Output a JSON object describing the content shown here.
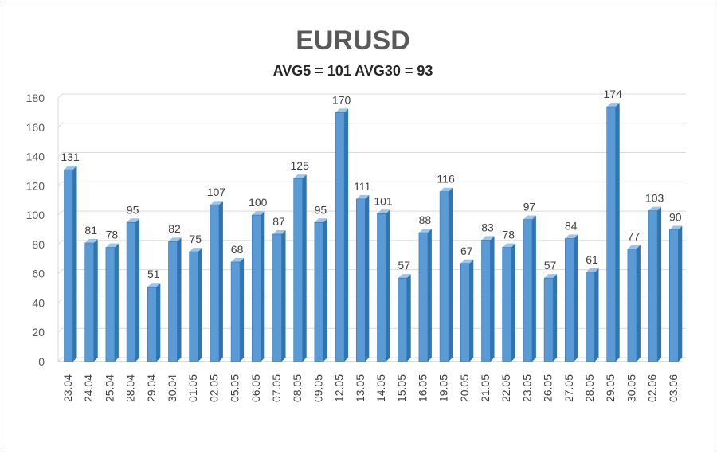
{
  "chart_data": {
    "type": "bar",
    "title": "EURUSD",
    "subtitle": "AVG5 = 101 AVG30 = 93",
    "xlabel": "",
    "ylabel": "",
    "ylim": [
      0,
      180
    ],
    "yticks": [
      0,
      20,
      40,
      60,
      80,
      100,
      120,
      140,
      160,
      180
    ],
    "grid": true,
    "legend": "none",
    "colors": {
      "bar_front": "#5b9bd5",
      "bar_light": "#9dc3e6",
      "bar_dark": "#2e75b6",
      "grid": "#d9d9d9"
    },
    "categories": [
      "23.04",
      "24.04",
      "25.04",
      "28.04",
      "29.04",
      "30.04",
      "01.05",
      "02.05",
      "05.05",
      "06.05",
      "07.05",
      "08.05",
      "09.05",
      "12.05",
      "13.05",
      "14.05",
      "15.05",
      "16.05",
      "19.05",
      "20.05",
      "21.05",
      "22.05",
      "23.05",
      "26.05",
      "27.05",
      "28.05",
      "29.05",
      "30.05",
      "02.06",
      "03.06"
    ],
    "values": [
      131,
      81,
      78,
      95,
      51,
      82,
      75,
      107,
      68,
      100,
      87,
      125,
      95,
      170,
      111,
      101,
      57,
      88,
      116,
      67,
      83,
      78,
      97,
      57,
      84,
      61,
      174,
      77,
      103,
      90
    ]
  }
}
